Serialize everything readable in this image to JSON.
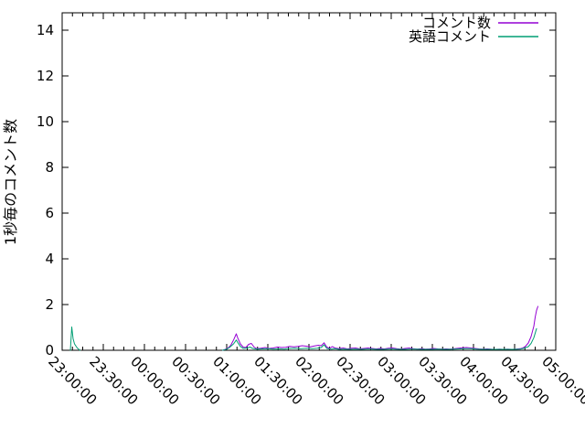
{
  "window": {
    "background": "#ffffff",
    "border_color": "#000000"
  },
  "chart_data": {
    "type": "line",
    "title": "",
    "xlabel": "",
    "ylabel": "1秒毎のコメント数",
    "grid": false,
    "legend_position": "top-right",
    "x_axis": {
      "unit": "time (HH:MM:SS)",
      "range_minutes": [
        0,
        360
      ],
      "tick_minutes": [
        0,
        30,
        60,
        90,
        120,
        150,
        180,
        210,
        240,
        270,
        300,
        330,
        360
      ],
      "tick_labels": [
        "23:00:00",
        "23:30:00",
        "00:00:00",
        "00:30:00",
        "01:00:00",
        "01:30:00",
        "02:00:00",
        "02:30:00",
        "03:00:00",
        "03:30:00",
        "04:00:00",
        "04:30:00",
        "05:00:00"
      ],
      "minor_divisions_per_major": 4,
      "label_rotation_deg": 45
    },
    "y_axis": {
      "range": [
        0,
        15
      ],
      "ticks": [
        0,
        2,
        4,
        6,
        8,
        10,
        12,
        14
      ]
    },
    "series": [
      {
        "name": "コメント数",
        "color": "#9400d3",
        "segments": [
          [
            [
              117,
              0
            ],
            [
              119,
              0.04
            ],
            [
              121,
              0.1
            ],
            [
              123,
              0.22
            ],
            [
              125,
              0.45
            ],
            [
              127,
              0.72
            ],
            [
              128,
              0.55
            ],
            [
              130,
              0.28
            ],
            [
              132,
              0.14
            ],
            [
              134,
              0.12
            ],
            [
              136,
              0.26
            ],
            [
              138,
              0.3
            ],
            [
              140,
              0.14
            ],
            [
              142,
              0.07
            ],
            [
              145,
              0.09
            ],
            [
              148,
              0.12
            ],
            [
              151,
              0.08
            ],
            [
              154,
              0.1
            ],
            [
              157,
              0.14
            ],
            [
              160,
              0.12
            ],
            [
              163,
              0.13
            ],
            [
              166,
              0.17
            ],
            [
              169,
              0.15
            ],
            [
              172,
              0.17
            ],
            [
              175,
              0.2
            ],
            [
              178,
              0.18
            ],
            [
              181,
              0.15
            ],
            [
              184,
              0.19
            ],
            [
              187,
              0.22
            ],
            [
              189,
              0.2
            ],
            [
              191,
              0.33
            ],
            [
              193,
              0.14
            ],
            [
              195,
              0.09
            ],
            [
              197,
              0.16
            ],
            [
              199,
              0.1
            ],
            [
              202,
              0.07
            ],
            [
              205,
              0.1
            ],
            [
              208,
              0.06
            ],
            [
              211,
              0.09
            ],
            [
              214,
              0.1
            ],
            [
              217,
              0.06
            ],
            [
              220,
              0.08
            ],
            [
              223,
              0.1
            ],
            [
              226,
              0.08
            ],
            [
              229,
              0.06
            ],
            [
              232,
              0.08
            ],
            [
              235,
              0.06
            ],
            [
              238,
              0.09
            ],
            [
              241,
              0.1
            ],
            [
              244,
              0.07
            ],
            [
              247,
              0.05
            ],
            [
              250,
              0.08
            ],
            [
              253,
              0.1
            ],
            [
              256,
              0.07
            ],
            [
              259,
              0.05
            ],
            [
              262,
              0.07
            ],
            [
              265,
              0.05
            ],
            [
              268,
              0.06
            ],
            [
              271,
              0.08
            ],
            [
              274,
              0.06
            ],
            [
              277,
              0.05
            ],
            [
              280,
              0.06
            ],
            [
              283,
              0.05
            ],
            [
              286,
              0.07
            ],
            [
              289,
              0.09
            ],
            [
              292,
              0.11
            ],
            [
              295,
              0.12
            ],
            [
              298,
              0.1
            ],
            [
              301,
              0.08
            ],
            [
              304,
              0.06
            ],
            [
              307,
              0.05
            ],
            [
              310,
              0.06
            ],
            [
              313,
              0.05
            ],
            [
              316,
              0.04
            ],
            [
              319,
              0.05
            ],
            [
              322,
              0.04
            ],
            [
              325,
              0.05
            ],
            [
              328,
              0.04
            ],
            [
              331,
              0.05
            ],
            [
              334,
              0.07
            ],
            [
              336,
              0.1
            ],
            [
              338,
              0.18
            ],
            [
              340,
              0.32
            ],
            [
              342,
              0.6
            ],
            [
              344,
              1.05
            ],
            [
              345,
              1.45
            ],
            [
              346,
              1.75
            ],
            [
              347,
              1.92
            ]
          ]
        ]
      },
      {
        "name": "英語コメント",
        "color": "#009e73",
        "segments": [
          [
            [
              6,
              0
            ],
            [
              7,
              1.02
            ],
            [
              8,
              0.5
            ],
            [
              9,
              0.28
            ],
            [
              11,
              0.1
            ],
            [
              13,
              0
            ]
          ],
          [
            [
              117,
              0
            ],
            [
              120,
              0.05
            ],
            [
              122,
              0.12
            ],
            [
              125,
              0.28
            ],
            [
              127,
              0.45
            ],
            [
              128,
              0.35
            ],
            [
              130,
              0.17
            ],
            [
              132,
              0.08
            ],
            [
              135,
              0.1
            ],
            [
              137,
              0.14
            ],
            [
              139,
              0.08
            ],
            [
              142,
              0.05
            ],
            [
              146,
              0.06
            ],
            [
              150,
              0.07
            ],
            [
              154,
              0.05
            ],
            [
              158,
              0.06
            ],
            [
              162,
              0.05
            ],
            [
              166,
              0.08
            ],
            [
              170,
              0.09
            ],
            [
              174,
              0.07
            ],
            [
              178,
              0.09
            ],
            [
              182,
              0.07
            ],
            [
              186,
              0.09
            ],
            [
              189,
              0.12
            ],
            [
              191,
              0.24
            ],
            [
              193,
              0.08
            ],
            [
              196,
              0.05
            ],
            [
              199,
              0.07
            ],
            [
              202,
              0.04
            ],
            [
              206,
              0.05
            ],
            [
              210,
              0.04
            ],
            [
              214,
              0.05
            ],
            [
              218,
              0.04
            ],
            [
              222,
              0.05
            ],
            [
              226,
              0.05
            ],
            [
              230,
              0.04
            ],
            [
              234,
              0.04
            ],
            [
              238,
              0.05
            ],
            [
              242,
              0.05
            ],
            [
              246,
              0.04
            ],
            [
              250,
              0.04
            ],
            [
              254,
              0.05
            ],
            [
              258,
              0.05
            ],
            [
              262,
              0.04
            ],
            [
              266,
              0.04
            ],
            [
              270,
              0.04
            ],
            [
              274,
              0.05
            ],
            [
              278,
              0.04
            ],
            [
              282,
              0.04
            ],
            [
              286,
              0.05
            ],
            [
              290,
              0.06
            ],
            [
              294,
              0.07
            ],
            [
              298,
              0.07
            ],
            [
              302,
              0.05
            ],
            [
              306,
              0.04
            ],
            [
              310,
              0.04
            ],
            [
              314,
              0.04
            ],
            [
              318,
              0.04
            ],
            [
              322,
              0.04
            ],
            [
              326,
              0.04
            ],
            [
              330,
              0.04
            ],
            [
              334,
              0.05
            ],
            [
              337,
              0.09
            ],
            [
              340,
              0.16
            ],
            [
              342,
              0.3
            ],
            [
              344,
              0.55
            ],
            [
              345,
              0.75
            ],
            [
              346,
              0.95
            ]
          ]
        ]
      }
    ]
  }
}
